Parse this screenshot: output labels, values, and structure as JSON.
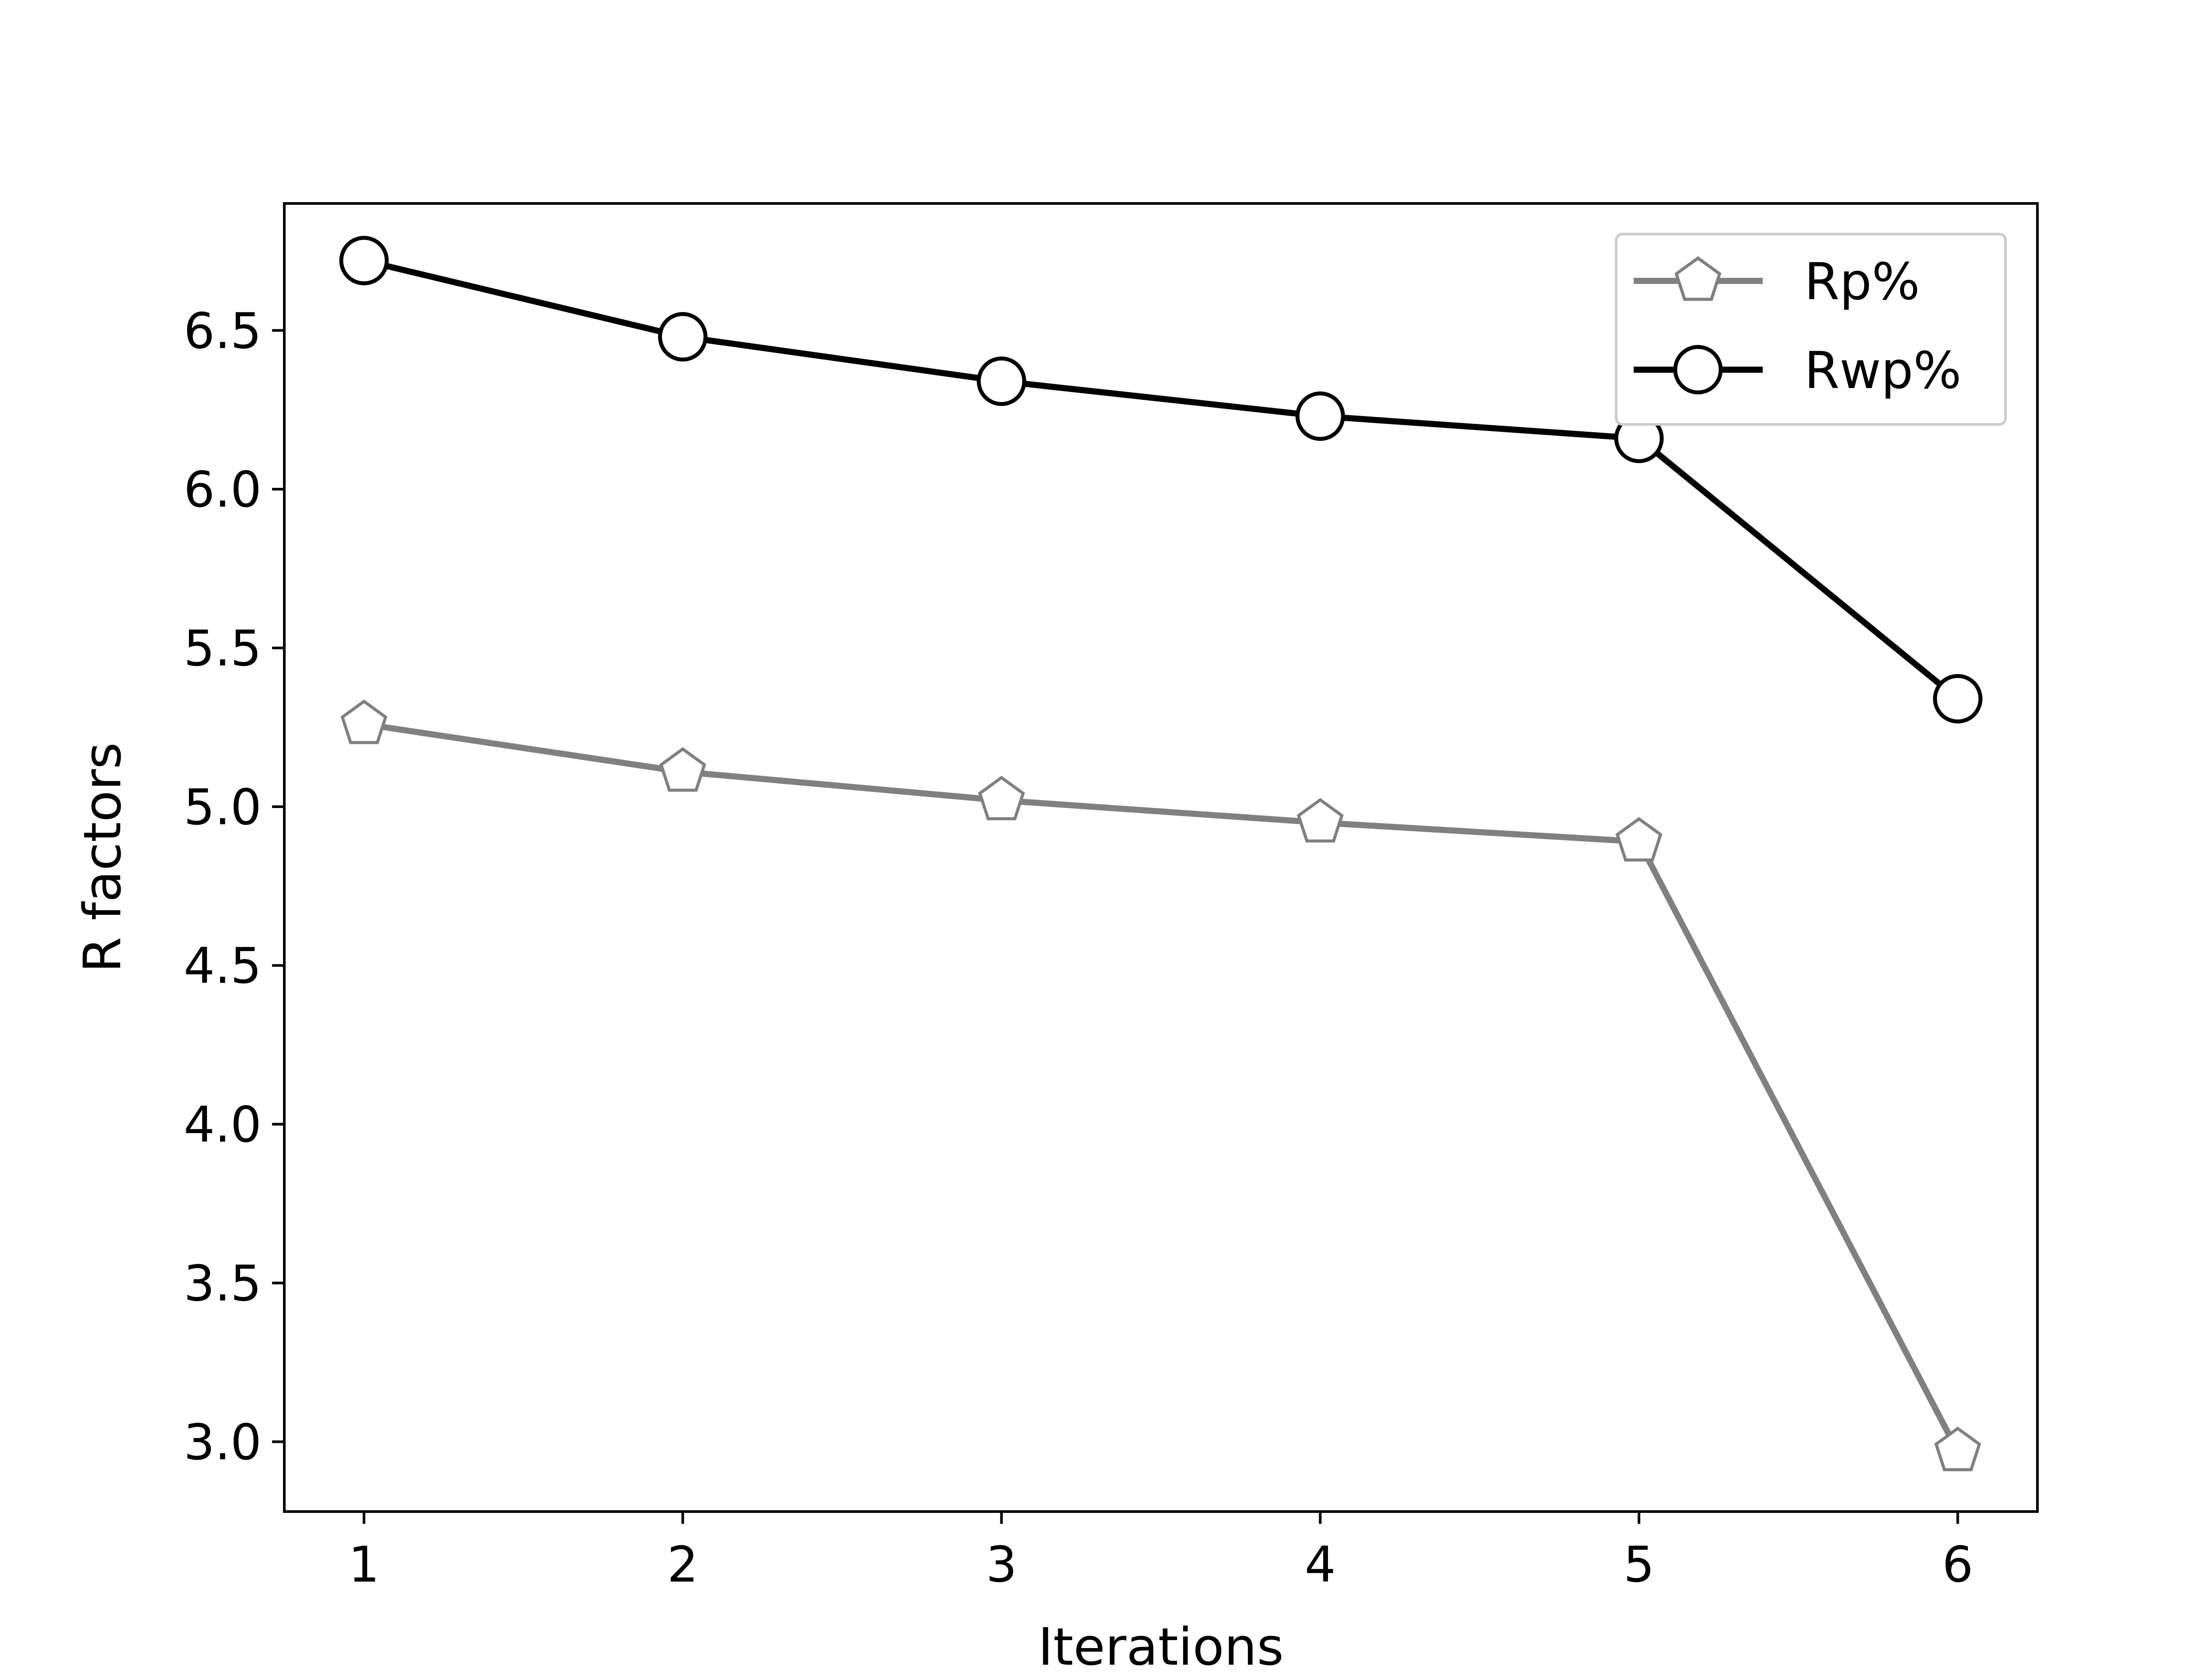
{
  "chart_data": {
    "type": "line",
    "title": "",
    "xlabel": "Iterations",
    "ylabel": "R factors",
    "x": [
      1,
      2,
      3,
      4,
      5,
      6
    ],
    "x_ticks": [
      "1",
      "2",
      "3",
      "4",
      "5",
      "6"
    ],
    "xlim": [
      0.75,
      6.25
    ],
    "ylim": [
      2.78,
      6.9
    ],
    "y_ticks": [
      "3.0",
      "3.5",
      "4.0",
      "4.5",
      "5.0",
      "5.5",
      "6.0",
      "6.5"
    ],
    "grid": false,
    "legend_position": "upper right",
    "series": [
      {
        "name": "Rp%",
        "values": [
          5.26,
          5.11,
          5.02,
          4.95,
          4.89,
          2.97
        ],
        "color": "#808080",
        "marker": "pentagon"
      },
      {
        "name": "Rwp%",
        "values": [
          6.72,
          6.48,
          6.34,
          6.23,
          6.16,
          5.34
        ],
        "color": "#000000",
        "marker": "circle"
      }
    ]
  }
}
